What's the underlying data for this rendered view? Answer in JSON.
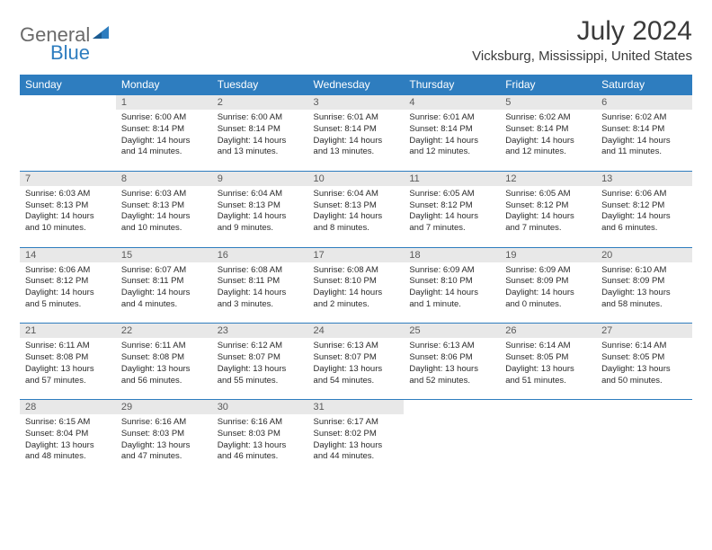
{
  "logo": {
    "part1": "General",
    "part2": "Blue"
  },
  "title": "July 2024",
  "location": "Vicksburg, Mississippi, United States",
  "colors": {
    "header_bg": "#2e7dbf",
    "header_text": "#ffffff",
    "daynum_bg": "#e8e8e8",
    "row_border": "#2e7dbf",
    "logo_gray": "#6a6a6a",
    "logo_blue": "#2e7dbf"
  },
  "day_names": [
    "Sunday",
    "Monday",
    "Tuesday",
    "Wednesday",
    "Thursday",
    "Friday",
    "Saturday"
  ],
  "weeks": [
    [
      {
        "n": "",
        "sr": "",
        "ss": "",
        "dl": ""
      },
      {
        "n": "1",
        "sr": "Sunrise: 6:00 AM",
        "ss": "Sunset: 8:14 PM",
        "dl": "Daylight: 14 hours and 14 minutes."
      },
      {
        "n": "2",
        "sr": "Sunrise: 6:00 AM",
        "ss": "Sunset: 8:14 PM",
        "dl": "Daylight: 14 hours and 13 minutes."
      },
      {
        "n": "3",
        "sr": "Sunrise: 6:01 AM",
        "ss": "Sunset: 8:14 PM",
        "dl": "Daylight: 14 hours and 13 minutes."
      },
      {
        "n": "4",
        "sr": "Sunrise: 6:01 AM",
        "ss": "Sunset: 8:14 PM",
        "dl": "Daylight: 14 hours and 12 minutes."
      },
      {
        "n": "5",
        "sr": "Sunrise: 6:02 AM",
        "ss": "Sunset: 8:14 PM",
        "dl": "Daylight: 14 hours and 12 minutes."
      },
      {
        "n": "6",
        "sr": "Sunrise: 6:02 AM",
        "ss": "Sunset: 8:14 PM",
        "dl": "Daylight: 14 hours and 11 minutes."
      }
    ],
    [
      {
        "n": "7",
        "sr": "Sunrise: 6:03 AM",
        "ss": "Sunset: 8:13 PM",
        "dl": "Daylight: 14 hours and 10 minutes."
      },
      {
        "n": "8",
        "sr": "Sunrise: 6:03 AM",
        "ss": "Sunset: 8:13 PM",
        "dl": "Daylight: 14 hours and 10 minutes."
      },
      {
        "n": "9",
        "sr": "Sunrise: 6:04 AM",
        "ss": "Sunset: 8:13 PM",
        "dl": "Daylight: 14 hours and 9 minutes."
      },
      {
        "n": "10",
        "sr": "Sunrise: 6:04 AM",
        "ss": "Sunset: 8:13 PM",
        "dl": "Daylight: 14 hours and 8 minutes."
      },
      {
        "n": "11",
        "sr": "Sunrise: 6:05 AM",
        "ss": "Sunset: 8:12 PM",
        "dl": "Daylight: 14 hours and 7 minutes."
      },
      {
        "n": "12",
        "sr": "Sunrise: 6:05 AM",
        "ss": "Sunset: 8:12 PM",
        "dl": "Daylight: 14 hours and 7 minutes."
      },
      {
        "n": "13",
        "sr": "Sunrise: 6:06 AM",
        "ss": "Sunset: 8:12 PM",
        "dl": "Daylight: 14 hours and 6 minutes."
      }
    ],
    [
      {
        "n": "14",
        "sr": "Sunrise: 6:06 AM",
        "ss": "Sunset: 8:12 PM",
        "dl": "Daylight: 14 hours and 5 minutes."
      },
      {
        "n": "15",
        "sr": "Sunrise: 6:07 AM",
        "ss": "Sunset: 8:11 PM",
        "dl": "Daylight: 14 hours and 4 minutes."
      },
      {
        "n": "16",
        "sr": "Sunrise: 6:08 AM",
        "ss": "Sunset: 8:11 PM",
        "dl": "Daylight: 14 hours and 3 minutes."
      },
      {
        "n": "17",
        "sr": "Sunrise: 6:08 AM",
        "ss": "Sunset: 8:10 PM",
        "dl": "Daylight: 14 hours and 2 minutes."
      },
      {
        "n": "18",
        "sr": "Sunrise: 6:09 AM",
        "ss": "Sunset: 8:10 PM",
        "dl": "Daylight: 14 hours and 1 minute."
      },
      {
        "n": "19",
        "sr": "Sunrise: 6:09 AM",
        "ss": "Sunset: 8:09 PM",
        "dl": "Daylight: 14 hours and 0 minutes."
      },
      {
        "n": "20",
        "sr": "Sunrise: 6:10 AM",
        "ss": "Sunset: 8:09 PM",
        "dl": "Daylight: 13 hours and 58 minutes."
      }
    ],
    [
      {
        "n": "21",
        "sr": "Sunrise: 6:11 AM",
        "ss": "Sunset: 8:08 PM",
        "dl": "Daylight: 13 hours and 57 minutes."
      },
      {
        "n": "22",
        "sr": "Sunrise: 6:11 AM",
        "ss": "Sunset: 8:08 PM",
        "dl": "Daylight: 13 hours and 56 minutes."
      },
      {
        "n": "23",
        "sr": "Sunrise: 6:12 AM",
        "ss": "Sunset: 8:07 PM",
        "dl": "Daylight: 13 hours and 55 minutes."
      },
      {
        "n": "24",
        "sr": "Sunrise: 6:13 AM",
        "ss": "Sunset: 8:07 PM",
        "dl": "Daylight: 13 hours and 54 minutes."
      },
      {
        "n": "25",
        "sr": "Sunrise: 6:13 AM",
        "ss": "Sunset: 8:06 PM",
        "dl": "Daylight: 13 hours and 52 minutes."
      },
      {
        "n": "26",
        "sr": "Sunrise: 6:14 AM",
        "ss": "Sunset: 8:05 PM",
        "dl": "Daylight: 13 hours and 51 minutes."
      },
      {
        "n": "27",
        "sr": "Sunrise: 6:14 AM",
        "ss": "Sunset: 8:05 PM",
        "dl": "Daylight: 13 hours and 50 minutes."
      }
    ],
    [
      {
        "n": "28",
        "sr": "Sunrise: 6:15 AM",
        "ss": "Sunset: 8:04 PM",
        "dl": "Daylight: 13 hours and 48 minutes."
      },
      {
        "n": "29",
        "sr": "Sunrise: 6:16 AM",
        "ss": "Sunset: 8:03 PM",
        "dl": "Daylight: 13 hours and 47 minutes."
      },
      {
        "n": "30",
        "sr": "Sunrise: 6:16 AM",
        "ss": "Sunset: 8:03 PM",
        "dl": "Daylight: 13 hours and 46 minutes."
      },
      {
        "n": "31",
        "sr": "Sunrise: 6:17 AM",
        "ss": "Sunset: 8:02 PM",
        "dl": "Daylight: 13 hours and 44 minutes."
      },
      {
        "n": "",
        "sr": "",
        "ss": "",
        "dl": ""
      },
      {
        "n": "",
        "sr": "",
        "ss": "",
        "dl": ""
      },
      {
        "n": "",
        "sr": "",
        "ss": "",
        "dl": ""
      }
    ]
  ]
}
